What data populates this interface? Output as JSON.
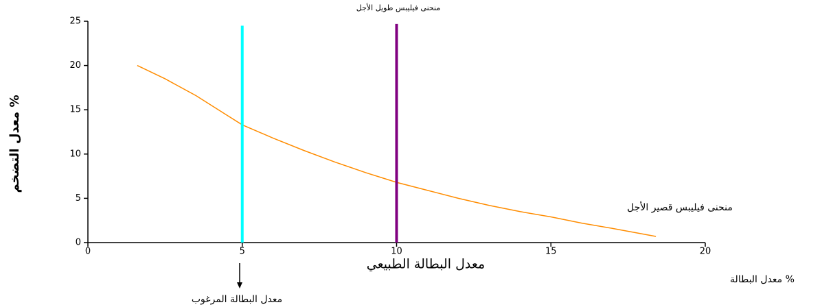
{
  "chart_data": {
    "type": "line",
    "title": "منحنى فيليبس طويل الأجل",
    "y_label": "معدل التضخم %",
    "x_label": "معدل البطالة %",
    "annotations": {
      "natural": "معدل البطالة الطبيعي",
      "desired": "معدل البطالة المرغوب",
      "short_run": "منحنى فيليبس قصير الأجل"
    },
    "xlim": [
      0,
      20
    ],
    "xticks": [
      0,
      5,
      10,
      15,
      20
    ],
    "ylim": [
      0,
      25
    ],
    "yticks": [
      0,
      5,
      10,
      15,
      20,
      25
    ],
    "series": [
      {
        "color": "#ff8c00",
        "x": [
          1.6,
          2.5,
          3.5,
          4.5,
          5,
          6,
          7,
          8,
          9,
          10,
          11,
          12,
          13,
          14,
          15,
          16,
          17,
          18.4
        ],
        "values": [
          20,
          18.5,
          16.6,
          14.4,
          13.3,
          11.8,
          10.4,
          9.1,
          7.9,
          6.8,
          5.9,
          5.0,
          4.2,
          3.5,
          2.9,
          2.2,
          1.6,
          0.7
        ]
      },
      {
        "color": "#00ffff",
        "x": [
          5,
          5
        ],
        "values": [
          0,
          24.5
        ]
      },
      {
        "color": "#800080",
        "x": [
          10,
          10
        ],
        "values": [
          0,
          24.7
        ]
      }
    ]
  }
}
